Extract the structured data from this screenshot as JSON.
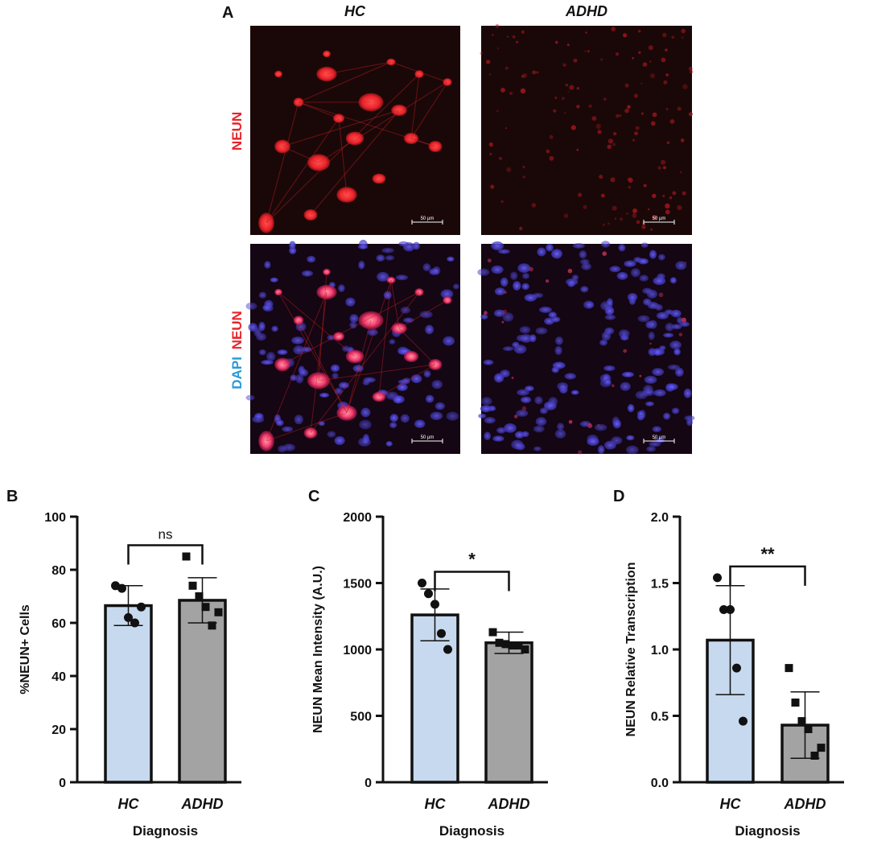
{
  "panel_a": {
    "label": "A",
    "columns": [
      "HC",
      "ADHD"
    ],
    "row1_label": "NEUN",
    "row2_label_dapi": "DAPI",
    "row2_label_neun": "NEUN",
    "scale_bar": "50 µm",
    "colors": {
      "neun": "#e8232a",
      "dapi": "#2c9ad6",
      "bg": "#1a0a0a"
    }
  },
  "colors": {
    "hc": "#c7d9ee",
    "adhd": "#a3a3a3",
    "axis": "#111111"
  },
  "chart_data": [
    {
      "panel": "B",
      "type": "bar",
      "categories": [
        "HC",
        "ADHD"
      ],
      "values": [
        66.5,
        68.5
      ],
      "error": [
        7.5,
        8.5
      ],
      "points": [
        [
          74,
          73,
          62,
          60,
          66
        ],
        [
          85,
          74,
          70,
          66,
          59,
          64
        ]
      ],
      "ylabel": "%NEUN+ Cells",
      "xlabel": "Diagnosis",
      "ylim": [
        0,
        100
      ],
      "yticks": [
        0,
        20,
        40,
        60,
        80,
        100
      ],
      "ytick_labels": [
        "0",
        "20",
        "40",
        "60",
        "80",
        "100"
      ],
      "significance": "ns"
    },
    {
      "panel": "C",
      "type": "bar",
      "categories": [
        "HC",
        "ADHD"
      ],
      "values": [
        1260,
        1050
      ],
      "error": [
        195,
        80
      ],
      "points": [
        [
          1500,
          1420,
          1340,
          1120,
          1000
        ],
        [
          1130,
          1050,
          1040,
          1030,
          1030,
          1000
        ]
      ],
      "ylabel": "NEUN Mean Intensity (A.U.)",
      "xlabel": "Diagnosis",
      "ylim": [
        0,
        2000
      ],
      "yticks": [
        0,
        500,
        1000,
        1500,
        2000
      ],
      "ytick_labels": [
        "0",
        "500",
        "1000",
        "1500",
        "2000"
      ],
      "significance": "*"
    },
    {
      "panel": "D",
      "type": "bar",
      "categories": [
        "HC",
        "ADHD"
      ],
      "values": [
        1.07,
        0.43
      ],
      "error": [
        0.41,
        0.25
      ],
      "points": [
        [
          1.54,
          1.3,
          1.3,
          0.86,
          0.46
        ],
        [
          0.86,
          0.6,
          0.46,
          0.4,
          0.2,
          0.26
        ]
      ],
      "ylabel": "NEUN Relative Transcription",
      "xlabel": "Diagnosis",
      "ylim": [
        0,
        2.0
      ],
      "yticks": [
        0,
        0.5,
        1.0,
        1.5,
        2.0
      ],
      "ytick_labels": [
        "0.0",
        "0.5",
        "1.0",
        "1.5",
        "2.0"
      ],
      "significance": "**"
    }
  ]
}
